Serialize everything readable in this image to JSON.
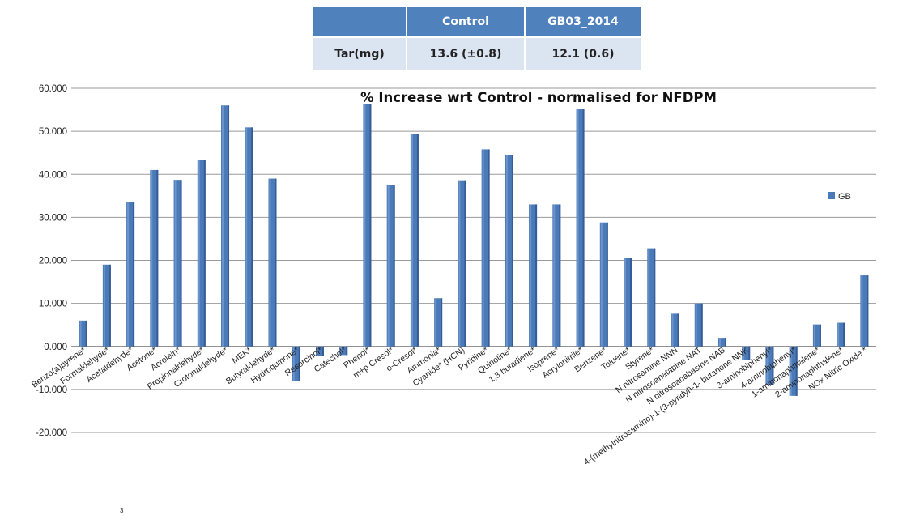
{
  "table": {
    "headers": [
      "",
      "Control",
      "GB03_2014"
    ],
    "row": {
      "label": "Tar(mg)",
      "values": [
        "13.6 (±0.8)",
        "12.1 (0.6)"
      ]
    }
  },
  "footnote": "3",
  "chart_data": {
    "type": "bar",
    "title": "% Increase wrt Control - normalised for NFDPM",
    "xlabel": "",
    "ylabel": "",
    "ylim": [
      -20,
      60
    ],
    "ytick_labels": [
      "60.000",
      "50.000",
      "40.000",
      "30.000",
      "20.000",
      "10.000",
      "0.000",
      "-10.000",
      "-20.000"
    ],
    "grid": true,
    "legend_position": "right",
    "bar_color": "#4a7ab8",
    "categories": [
      "Benzo(a)pyrene*",
      "Formaldehyde*",
      "Acetaldehyde*",
      "Acetone*",
      "Acrolein*",
      "Propionaldehyde*",
      "Crotonaldehyde*",
      "MEK*",
      "Butyraldehyde*",
      "Hydroquinone*",
      "Resorcinol*",
      "Catechol*",
      "Phenol*",
      "m+p Cresol*",
      "o-Cresol*",
      "Ammonia*",
      "Cyanide* (HCN)",
      "Pyridine*",
      "Quinoline*",
      "1,3 butadiene*",
      "Isoprene*",
      "Acrylonitrile*",
      "Benzene*",
      "Toluene*",
      "Styrene*",
      "N nitrosamine NNN",
      "N nitrosoanatabine NAT",
      "N nitrosoanabasine NAB",
      "4-(methylnitrosamino)-1-(3-pyridyl)-1- butanone NNK",
      "3-aminobiphenyl*",
      "4-aminobiphenyl*",
      "1-aminonaphthalene*",
      "2-aminonaphthalene*",
      "NOx Nitric Oxide *"
    ],
    "series": [
      {
        "name": "GB",
        "values": [
          6.0,
          19.0,
          33.5,
          41.0,
          38.7,
          43.4,
          56.0,
          50.9,
          39.0,
          -8.0,
          -2.2,
          -2.0,
          56.3,
          37.5,
          49.3,
          11.2,
          38.6,
          45.8,
          44.5,
          33.0,
          33.0,
          55.1,
          28.8,
          20.5,
          22.8,
          7.6,
          10.0,
          2.0,
          -3.2,
          -9.0,
          -11.5,
          5.1,
          5.5,
          16.5
        ]
      }
    ]
  }
}
